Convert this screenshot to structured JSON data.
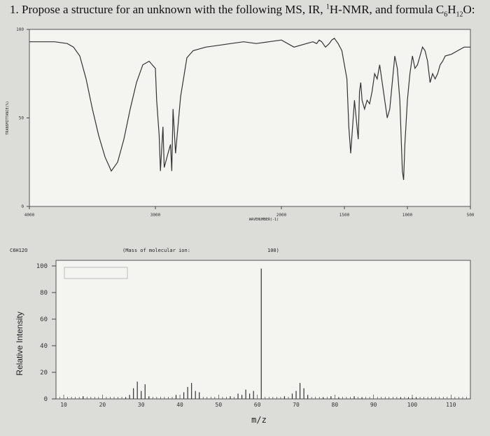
{
  "question": {
    "prefix": "1. Propose a structure for an unknown with the following MS, IR, ",
    "nmr_sup": "1",
    "nmr_text": "H-NMR, and formula C",
    "c_sub": "6",
    "h_text": "H",
    "h_sub": "12",
    "o_text": "O:"
  },
  "chart_data": [
    {
      "type": "line",
      "title": "",
      "xlabel": "WAVENUMBER(-1)",
      "ylabel": "TRANSMITTANCE(%)",
      "xlim": [
        4000,
        500
      ],
      "ylim": [
        0,
        100
      ],
      "x_ticks": [
        "4000",
        "3000",
        "2000",
        "1500",
        "1000",
        "500"
      ],
      "y_ticks": [
        "100",
        "50",
        "0"
      ],
      "series": [
        {
          "x": [
            4000,
            3900,
            3800,
            3700,
            3650,
            3600,
            3550,
            3500,
            3450,
            3400,
            3350,
            3300,
            3250,
            3200,
            3150,
            3100,
            3050,
            3000,
            2990,
            2970,
            2960,
            2940,
            2930,
            2900,
            2880,
            2870,
            2860,
            2840,
            2800,
            2750,
            2700,
            2600,
            2500,
            2400,
            2300,
            2200,
            2100,
            2000,
            1900,
            1800,
            1750,
            1720,
            1700,
            1680,
            1650,
            1620,
            1600,
            1580,
            1550,
            1520,
            1500,
            1480,
            1465,
            1450,
            1440,
            1420,
            1400,
            1390,
            1380,
            1370,
            1360,
            1340,
            1320,
            1300,
            1280,
            1260,
            1240,
            1220,
            1200,
            1180,
            1160,
            1140,
            1120,
            1100,
            1080,
            1060,
            1050,
            1040,
            1030,
            1020,
            1000,
            980,
            960,
            940,
            920,
            900,
            880,
            860,
            840,
            820,
            800,
            780,
            760,
            740,
            720,
            700,
            650,
            600,
            550,
            500
          ],
          "y": [
            93,
            93,
            93,
            92,
            90,
            85,
            72,
            55,
            40,
            28,
            20,
            25,
            38,
            55,
            70,
            80,
            82,
            78,
            60,
            40,
            20,
            45,
            22,
            30,
            35,
            20,
            55,
            30,
            62,
            84,
            88,
            90,
            91,
            92,
            93,
            92,
            93,
            94,
            90,
            92,
            93,
            92,
            94,
            93,
            90,
            92,
            94,
            95,
            92,
            88,
            80,
            72,
            45,
            30,
            40,
            60,
            45,
            38,
            65,
            70,
            60,
            55,
            60,
            58,
            65,
            75,
            72,
            80,
            70,
            60,
            50,
            55,
            70,
            85,
            78,
            60,
            40,
            20,
            15,
            35,
            60,
            75,
            85,
            78,
            80,
            85,
            90,
            88,
            82,
            70,
            75,
            72,
            75,
            80,
            82,
            85,
            86,
            88,
            90,
            90
          ]
        }
      ]
    },
    {
      "type": "bar",
      "title": "",
      "header_formula": "C6H12O",
      "header_note": "(Mass of molecular ion:",
      "header_value": "100)",
      "xlabel": "m/z",
      "ylabel": "Relative Intensity",
      "xlim": [
        8,
        115
      ],
      "ylim": [
        0,
        100
      ],
      "x_ticks": [
        "10",
        "20",
        "30",
        "40",
        "50",
        "60",
        "70",
        "80",
        "90",
        "100",
        "110"
      ],
      "y_ticks": [
        "100",
        "80",
        "60",
        "40",
        "20",
        "0"
      ],
      "series": [
        {
          "x": [
            15,
            26,
            27,
            28,
            29,
            30,
            31,
            32,
            39,
            41,
            42,
            43,
            44,
            45,
            53,
            55,
            56,
            57,
            58,
            59,
            61,
            67,
            69,
            70,
            71,
            72,
            73,
            77,
            79,
            81,
            85,
            87,
            97,
            99,
            100,
            101
          ],
          "y": [
            2,
            1,
            3,
            8,
            13,
            6,
            11,
            2,
            3,
            5,
            9,
            12,
            6,
            5,
            2,
            4,
            3,
            7,
            4,
            6,
            98,
            2,
            4,
            6,
            12,
            8,
            3,
            1,
            2,
            1,
            2,
            1,
            1,
            1,
            1,
            1
          ]
        }
      ]
    }
  ]
}
